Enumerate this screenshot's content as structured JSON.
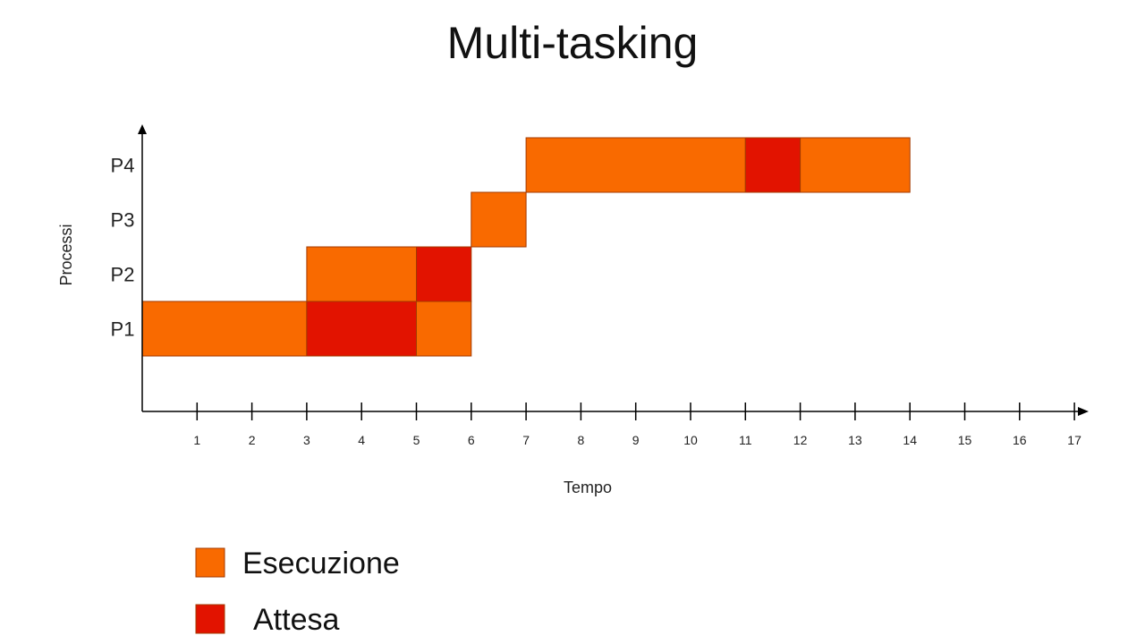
{
  "chart_data": {
    "type": "gantt",
    "title": "Multi-tasking",
    "xlabel": "Tempo",
    "ylabel": "Processi",
    "xlim": [
      0,
      17
    ],
    "xticks": [
      1,
      2,
      3,
      4,
      5,
      6,
      7,
      8,
      9,
      10,
      11,
      12,
      13,
      14,
      15,
      16,
      17
    ],
    "categories": [
      "P1",
      "P2",
      "P3",
      "P4"
    ],
    "legend": [
      {
        "key": "exec",
        "label": "Esecuzione",
        "color": "#f96a00"
      },
      {
        "key": "wait",
        "label": "Attesa",
        "color": "#e21300"
      }
    ],
    "segments": [
      {
        "process": "P1",
        "start": 0,
        "end": 3,
        "state": "exec"
      },
      {
        "process": "P1",
        "start": 3,
        "end": 5,
        "state": "wait"
      },
      {
        "process": "P1",
        "start": 5,
        "end": 6,
        "state": "exec"
      },
      {
        "process": "P2",
        "start": 3,
        "end": 5,
        "state": "exec"
      },
      {
        "process": "P2",
        "start": 5,
        "end": 6,
        "state": "wait"
      },
      {
        "process": "P3",
        "start": 6,
        "end": 7,
        "state": "exec"
      },
      {
        "process": "P4",
        "start": 7,
        "end": 11,
        "state": "exec"
      },
      {
        "process": "P4",
        "start": 11,
        "end": 12,
        "state": "wait"
      },
      {
        "process": "P4",
        "start": 12,
        "end": 14,
        "state": "exec"
      }
    ]
  }
}
